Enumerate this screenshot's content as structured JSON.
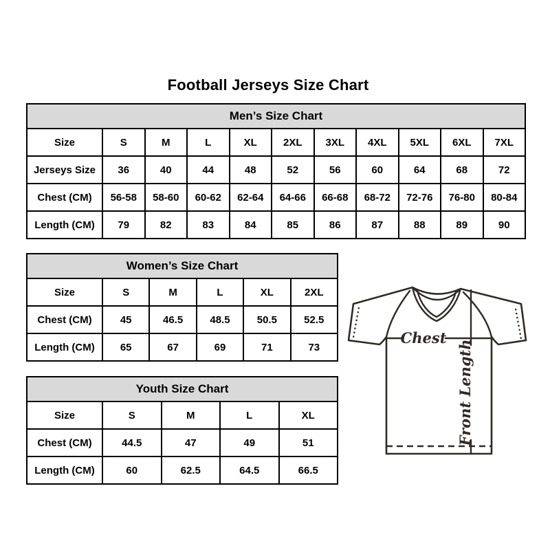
{
  "title": "Football Jerseys Size Chart",
  "colors": {
    "header_bg": "#d9d9d9",
    "border": "#000000",
    "text": "#000000",
    "diagram_line": "#2e2a26"
  },
  "tables": {
    "men": {
      "title": "Men’s Size Chart",
      "rows": [
        [
          "Size",
          "S",
          "M",
          "L",
          "XL",
          "2XL",
          "3XL",
          "4XL",
          "5XL",
          "6XL",
          "7XL"
        ],
        [
          "Jerseys Size",
          "36",
          "40",
          "44",
          "48",
          "52",
          "56",
          "60",
          "64",
          "68",
          "72"
        ],
        [
          "Chest (CM)",
          "56-58",
          "58-60",
          "60-62",
          "62-64",
          "64-66",
          "66-68",
          "68-72",
          "72-76",
          "76-80",
          "80-84"
        ],
        [
          "Length (CM)",
          "79",
          "82",
          "83",
          "84",
          "85",
          "86",
          "87",
          "88",
          "89",
          "90"
        ]
      ]
    },
    "women": {
      "title": "Women’s Size Chart",
      "rows": [
        [
          "Size",
          "S",
          "M",
          "L",
          "XL",
          "2XL"
        ],
        [
          "Chest (CM)",
          "45",
          "46.5",
          "48.5",
          "50.5",
          "52.5"
        ],
        [
          "Length (CM)",
          "65",
          "67",
          "69",
          "71",
          "73"
        ]
      ]
    },
    "youth": {
      "title": "Youth Size Chart",
      "rows": [
        [
          "Size",
          "S",
          "M",
          "L",
          "XL"
        ],
        [
          "Chest (CM)",
          "44.5",
          "47",
          "49",
          "51"
        ],
        [
          "Length (CM)",
          "60",
          "62.5",
          "64.5",
          "66.5"
        ]
      ]
    }
  },
  "diagram": {
    "chest_label": "Chest",
    "front_length_label": "Front Length"
  }
}
